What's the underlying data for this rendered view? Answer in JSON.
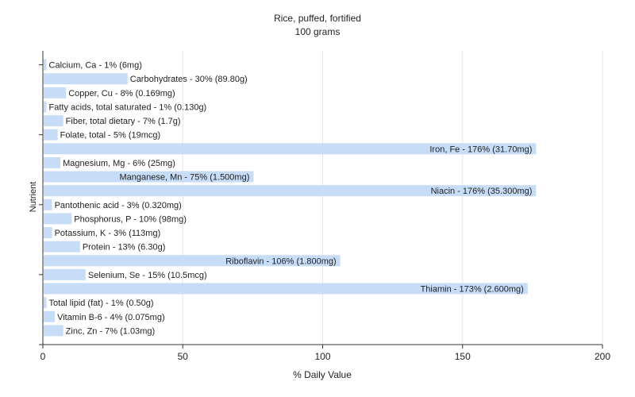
{
  "chart_data": {
    "type": "bar",
    "orientation": "horizontal",
    "title": "Rice, puffed, fortified",
    "subtitle": "100 grams",
    "xlabel": "% Daily Value",
    "ylabel": "Nutrient",
    "xlim": [
      0,
      200
    ],
    "xticks": [
      0,
      50,
      100,
      150,
      200
    ],
    "grid": true,
    "bar_color": "#c6dcf7",
    "categories": [
      "Calcium, Ca",
      "Carbohydrates",
      "Copper, Cu",
      "Fatty acids, total saturated",
      "Fiber, total dietary",
      "Folate, total",
      "Iron, Fe",
      "Magnesium, Mg",
      "Manganese, Mn",
      "Niacin",
      "Pantothenic acid",
      "Phosphorus, P",
      "Potassium, K",
      "Protein",
      "Riboflavin",
      "Selenium, Se",
      "Thiamin",
      "Total lipid (fat)",
      "Vitamin B-6",
      "Zinc, Zn"
    ],
    "values": [
      1,
      30,
      8,
      1,
      7,
      5,
      176,
      6,
      75,
      176,
      3,
      10,
      3,
      13,
      106,
      15,
      173,
      1,
      4,
      7
    ],
    "labels": [
      "Calcium, Ca - 1% (6mg)",
      "Carbohydrates - 30% (89.80g)",
      "Copper, Cu - 8% (0.169mg)",
      "Fatty acids, total saturated - 1% (0.130g)",
      "Fiber, total dietary - 7% (1.7g)",
      "Folate, total - 5% (19mcg)",
      "Iron, Fe - 176% (31.70mg)",
      "Magnesium, Mg - 6% (25mg)",
      "Manganese, Mn - 75% (1.500mg)",
      "Niacin - 176% (35.300mg)",
      "Pantothenic acid - 3% (0.320mg)",
      "Phosphorus, P - 10% (98mg)",
      "Potassium, K - 3% (113mg)",
      "Protein - 13% (6.30g)",
      "Riboflavin - 106% (1.800mg)",
      "Selenium, Se - 15% (10.5mcg)",
      "Thiamin - 173% (2.600mg)",
      "Total lipid (fat) - 1% (0.50g)",
      "Vitamin B-6 - 4% (0.075mg)",
      "Zinc, Zn - 7% (1.03mg)"
    ]
  }
}
